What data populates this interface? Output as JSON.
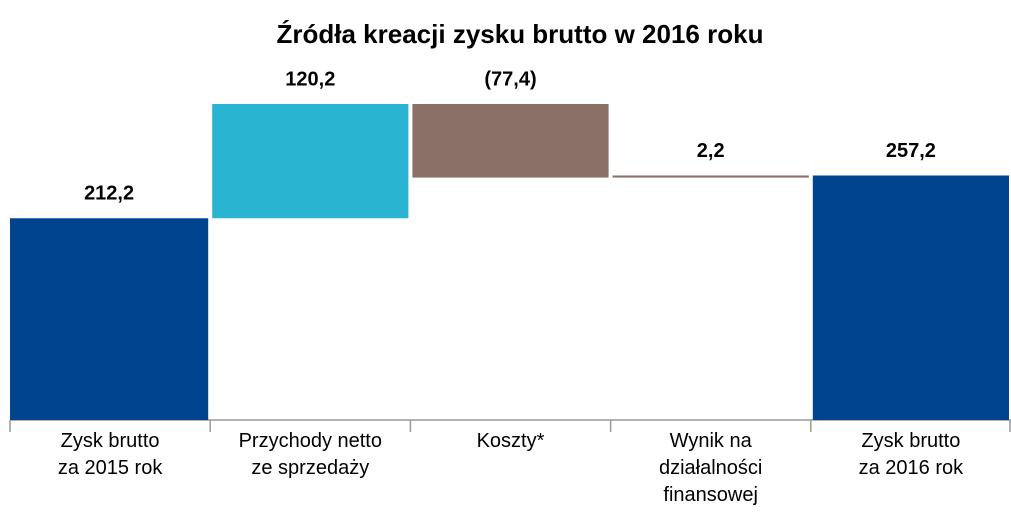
{
  "chart_data": {
    "type": "waterfall",
    "title": "Źródła kreacji zysku brutto w 2016 roku",
    "categories": [
      "Zysk brutto\nza 2015 rok",
      "Przychody netto\nze sprzedaży",
      "Koszty*",
      "Wynik na\ndziałalności\nfinansowej",
      "Zysk brutto\nza 2016 rok"
    ],
    "values": [
      212.2,
      120.2,
      -77.4,
      2.2,
      257.2
    ],
    "value_labels": [
      "212,2",
      "120,2",
      "(77,4)",
      "2,2",
      "257,2"
    ],
    "totals": [
      true,
      false,
      false,
      false,
      true
    ],
    "colors": [
      "#00448f",
      "#29b5d1",
      "#8a7066",
      "#8a7066",
      "#00448f"
    ]
  }
}
